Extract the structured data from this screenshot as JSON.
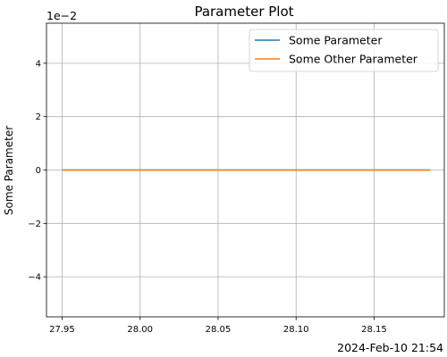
{
  "chart_data": {
    "type": "line",
    "title": "Parameter Plot",
    "xlabel": "",
    "ylabel": "Some Parameter",
    "y_offset_label": "1e−2",
    "x_offset_label": "2024-Feb-10 21:54",
    "xlim": [
      27.94,
      28.195
    ],
    "ylim": [
      -0.055,
      0.055
    ],
    "x_ticks": [
      27.95,
      28.0,
      28.05,
      28.1,
      28.15
    ],
    "x_tick_labels": [
      "27.95",
      "28.00",
      "28.05",
      "28.10",
      "28.15"
    ],
    "y_ticks": [
      -0.04,
      -0.02,
      0.0,
      0.02,
      0.04
    ],
    "y_tick_labels": [
      "−4",
      "−2",
      "0",
      "2",
      "4"
    ],
    "grid": true,
    "legend_position": "upper right",
    "series": [
      {
        "name": "Some Parameter",
        "color": "#1f77b4",
        "x": [
          27.95,
          28.186
        ],
        "y": [
          0,
          0
        ]
      },
      {
        "name": "Some Other Parameter",
        "color": "#ff7f0e",
        "x": [
          27.95,
          28.186
        ],
        "y": [
          0,
          0
        ]
      }
    ]
  }
}
